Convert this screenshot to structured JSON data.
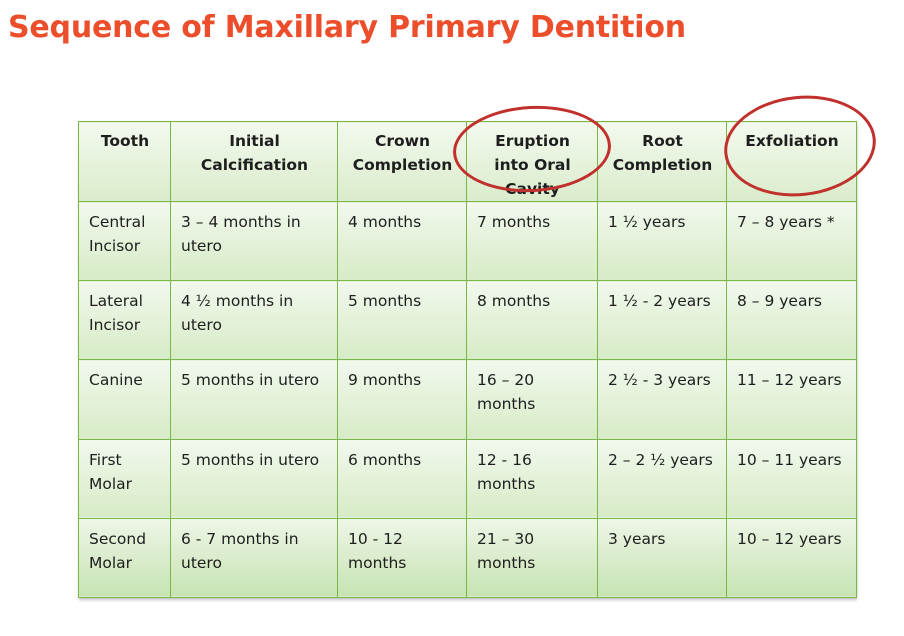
{
  "title": "Sequence of Maxillary Primary Dentition",
  "table": {
    "headers": [
      "Tooth",
      "Initial Calcification",
      "Crown Completion",
      "Eruption into Oral Cavity",
      "Root Completion",
      "Exfoliation"
    ],
    "rows": [
      [
        "Central Incisor",
        "3 – 4 months in utero",
        "4 months",
        "7  months",
        "1 ½ years",
        "7 – 8 years *"
      ],
      [
        "Lateral Incisor",
        "4 ½ months in utero",
        "5 months",
        "8  months",
        "1 ½ - 2 years",
        "8 – 9 years"
      ],
      [
        "Canine",
        "5 months in utero",
        "9 months",
        "16 – 20 months",
        "2 ½ - 3 years",
        "11 – 12 years"
      ],
      [
        "First Molar",
        "5 months in utero",
        "6 months",
        "12 - 16 months",
        "2 – 2 ½ years",
        "10 – 11 years"
      ],
      [
        "Second Molar",
        "6 - 7 months in utero",
        "10 - 12 months",
        "21 – 30 months",
        "3 years",
        "10 – 12 years"
      ]
    ]
  },
  "annotation_color": "#c0302c",
  "title_color": "#ec4d2a",
  "grid_color": "#7ab648"
}
